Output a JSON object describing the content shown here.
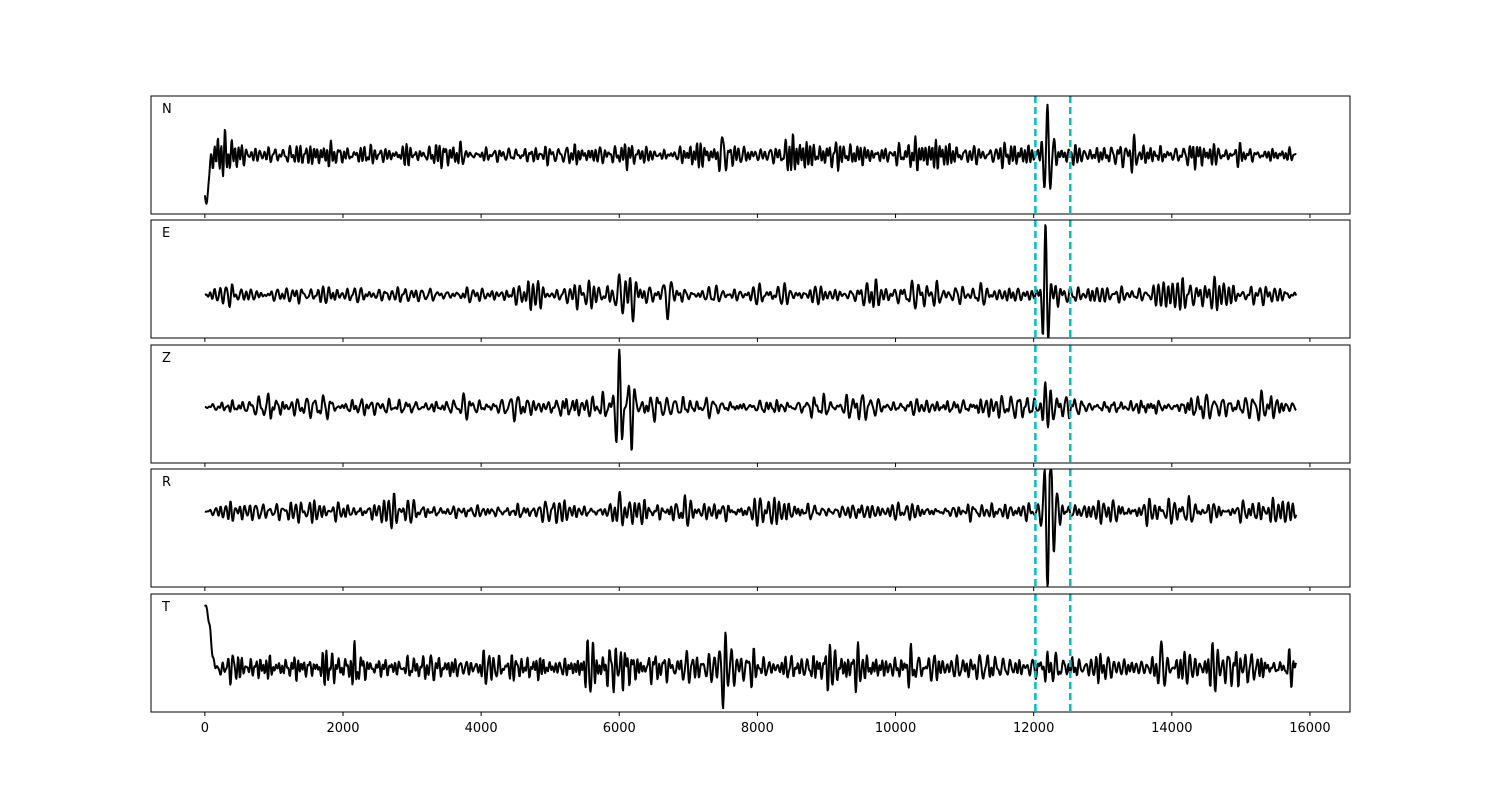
{
  "chart_data": {
    "type": "line",
    "title": "",
    "xlabel": "",
    "ylabel": "",
    "xlim": [
      -780,
      16580
    ],
    "x_ticks": [
      0,
      2000,
      4000,
      6000,
      8000,
      10000,
      12000,
      14000,
      16000
    ],
    "x_tick_labels": [
      "0",
      "2000",
      "4000",
      "6000",
      "8000",
      "10000",
      "12000",
      "14000",
      "16000"
    ],
    "n_samples": 15800,
    "grid": false,
    "trace_color": "#000000",
    "marker_color": "#00bfbf",
    "vertical_markers": [
      12025,
      12530
    ],
    "panels": [
      {
        "label": "N",
        "ylim": [
          -1,
          1
        ],
        "noise_amplitude": 0.22,
        "seed": 11,
        "events": [
          {
            "x": 20,
            "amp": -0.8,
            "width": 60,
            "period": 400
          },
          {
            "x": 12200,
            "amp": 0.85,
            "width": 70,
            "period": 90
          },
          {
            "x": 7500,
            "amp": 0.35,
            "width": 60,
            "period": 100
          }
        ]
      },
      {
        "label": "E",
        "ylim": [
          -0.73,
          1.27
        ],
        "noise_amplitude": 0.2,
        "seed": 23,
        "events": [
          {
            "x": 6000,
            "amp": 0.35,
            "width": 80,
            "period": 110
          },
          {
            "x": 6200,
            "amp": -0.5,
            "width": 70,
            "period": 110
          },
          {
            "x": 6700,
            "amp": -0.4,
            "width": 70,
            "period": 120
          },
          {
            "x": 12170,
            "amp": 1.1,
            "width": 60,
            "period": 90
          }
        ]
      },
      {
        "label": "Z",
        "ylim": [
          -0.95,
          1.05
        ],
        "noise_amplitude": 0.2,
        "seed": 37,
        "events": [
          {
            "x": 6000,
            "amp": 0.9,
            "width": 60,
            "period": 90
          },
          {
            "x": 6180,
            "amp": -0.78,
            "width": 50,
            "period": 90
          },
          {
            "x": 12170,
            "amp": 0.5,
            "width": 60,
            "period": 90
          }
        ]
      },
      {
        "label": "R",
        "ylim": [
          -1.29,
          0.73
        ],
        "noise_amplitude": 0.2,
        "seed": 51,
        "events": [
          {
            "x": 12200,
            "amp": -1.1,
            "width": 60,
            "period": 90
          },
          {
            "x": 12250,
            "amp": 0.55,
            "width": 60,
            "period": 90
          },
          {
            "x": 6000,
            "amp": 0.35,
            "width": 60,
            "period": 100
          }
        ]
      },
      {
        "label": "T",
        "ylim": [
          -0.75,
          1.25
        ],
        "noise_amplitude": 0.3,
        "seed": 67,
        "events": [
          {
            "x": 10,
            "amp": 1.05,
            "width": 120,
            "period": 600
          },
          {
            "x": 7500,
            "amp": -0.55,
            "width": 60,
            "period": 100
          },
          {
            "x": 13850,
            "amp": 0.45,
            "width": 60,
            "period": 100
          }
        ]
      }
    ]
  }
}
